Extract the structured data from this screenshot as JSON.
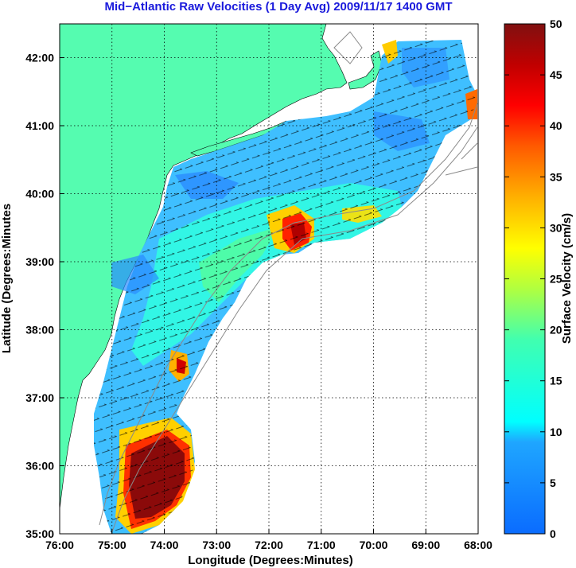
{
  "title": "Mid−Atlantic Raw Velocities (1 Day Avg) 2009/11/17 1400 GMT",
  "x_axis": {
    "label": "Longitude (Degrees:Minutes)",
    "ticks": [
      "76:00",
      "75:00",
      "74:00",
      "73:00",
      "72:00",
      "71:00",
      "70:00",
      "69:00",
      "68:00"
    ]
  },
  "y_axis": {
    "label": "Latitude (Degrees:Minutes",
    "ticks": [
      "35:00",
      "36:00",
      "37:00",
      "38:00",
      "39:00",
      "40:00",
      "41:00",
      "42:00"
    ]
  },
  "colorbar": {
    "label": "Surface Velocity (cm/s)",
    "ticks": [
      "0",
      "5",
      "10",
      "15",
      "20",
      "25",
      "30",
      "35",
      "40",
      "45",
      "50"
    ],
    "min": 0,
    "max": 50
  },
  "colors": {
    "land": "#55fcb0",
    "title": "#1a1adc",
    "grid": "#000000"
  }
}
